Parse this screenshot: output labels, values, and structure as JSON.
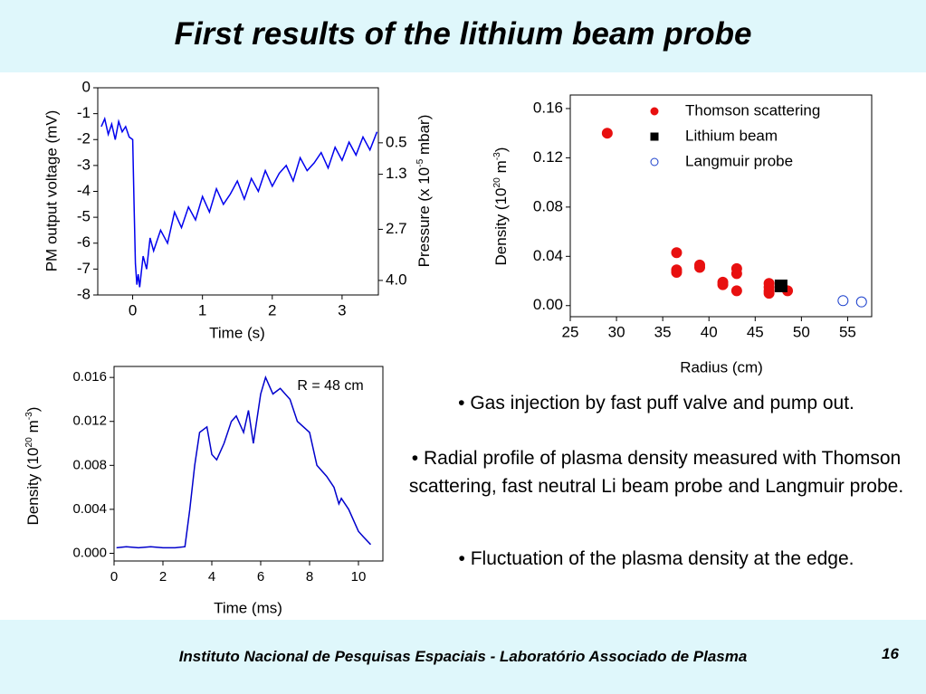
{
  "title": "First results of the lithium beam probe",
  "chart_data": [
    {
      "type": "line",
      "xlabel": "Time (s)",
      "ylabel": "PM output voltage (mV)",
      "y2label": {
        "parts": [
          "Pressure (x 10",
          "-5",
          " mbar)"
        ]
      },
      "x": [
        -0.45,
        -0.4,
        -0.35,
        -0.3,
        -0.25,
        -0.2,
        -0.15,
        -0.1,
        -0.05,
        0,
        0.02,
        0.04,
        0.06,
        0.08,
        0.1,
        0.15,
        0.2,
        0.25,
        0.3,
        0.4,
        0.5,
        0.6,
        0.7,
        0.8,
        0.9,
        1.0,
        1.1,
        1.2,
        1.3,
        1.4,
        1.5,
        1.6,
        1.7,
        1.8,
        1.9,
        2.0,
        2.1,
        2.2,
        2.3,
        2.4,
        2.5,
        2.6,
        2.7,
        2.8,
        2.9,
        3.0,
        3.1,
        3.2,
        3.3,
        3.4,
        3.5
      ],
      "series": [
        {
          "color": "#0000ee",
          "values": [
            -1.5,
            -1.2,
            -1.8,
            -1.4,
            -2.0,
            -1.3,
            -1.7,
            -1.5,
            -1.9,
            -2.0,
            -4.5,
            -6.8,
            -7.6,
            -7.2,
            -7.7,
            -6.5,
            -7.0,
            -5.8,
            -6.3,
            -5.5,
            -6.0,
            -4.8,
            -5.4,
            -4.6,
            -5.1,
            -4.2,
            -4.8,
            -3.9,
            -4.5,
            -4.1,
            -3.6,
            -4.3,
            -3.5,
            -4.0,
            -3.2,
            -3.8,
            -3.3,
            -3.0,
            -3.6,
            -2.7,
            -3.2,
            -2.9,
            -2.5,
            -3.1,
            -2.3,
            -2.8,
            -2.1,
            -2.6,
            -1.9,
            -2.4,
            -1.7
          ]
        }
      ],
      "xlim": [
        -0.5,
        3.52
      ],
      "xticks": [
        0,
        1,
        2,
        3
      ],
      "ylim": [
        -8,
        0
      ],
      "yticks": [
        0,
        -1,
        -2,
        -3,
        -4,
        -5,
        -6,
        -7,
        -8
      ],
      "y2lim": [
        4.37,
        -0.9
      ],
      "y2ticks": [
        0.5,
        1.3,
        2.7,
        {
          "value": 4,
          "label": "4.0"
        }
      ]
    },
    {
      "type": "scatter",
      "xlabel": "Radius (cm)",
      "ylabel": {
        "parts": [
          "Density (10",
          "20",
          " m",
          "-3",
          ")"
        ]
      },
      "legend": "upper right",
      "series": [
        {
          "name": "Thomson scattering",
          "color": "#e81010",
          "marker": "filled-circle",
          "x": [
            29,
            36.5,
            36.5,
            36.5,
            39,
            39,
            41.5,
            41.5,
            43,
            43,
            43,
            46.5,
            46.5,
            46.5,
            46.5,
            48.5
          ],
          "values": [
            0.14,
            0.043,
            0.029,
            0.027,
            0.033,
            0.031,
            0.019,
            0.017,
            0.03,
            0.026,
            0.012,
            0.018,
            0.015,
            0.012,
            0.01,
            0.012
          ]
        },
        {
          "name": "Lithium beam",
          "color": "#000000",
          "marker": "square",
          "x": [
            47.8
          ],
          "values": [
            0.016
          ]
        },
        {
          "name": "Langmuir probe",
          "color": "#1a3fcc",
          "marker": "open-circle",
          "x": [
            54.5,
            56.5
          ],
          "values": [
            0.004,
            0.003
          ]
        }
      ],
      "xlim": [
        25,
        57.6
      ],
      "xticks": [
        25,
        30,
        35,
        40,
        45,
        50,
        55
      ],
      "ylim": [
        -0.009,
        0.171
      ],
      "yticks": [
        {
          "value": 0,
          "label": "0.00"
        },
        0.04,
        0.08,
        0.12,
        0.16
      ]
    },
    {
      "type": "line",
      "xlabel": "Time (ms)",
      "ylabel": {
        "parts": [
          "Density (10",
          "20",
          " m",
          "-3",
          ")"
        ]
      },
      "annotation": "R = 48 cm",
      "x": [
        0.1,
        0.5,
        1.0,
        1.5,
        2.0,
        2.5,
        2.9,
        3.1,
        3.3,
        3.5,
        3.8,
        4.0,
        4.2,
        4.5,
        4.8,
        5.0,
        5.3,
        5.5,
        5.7,
        6.0,
        6.2,
        6.5,
        6.8,
        7.2,
        7.5,
        8.0,
        8.3,
        8.7,
        9.0,
        9.2,
        9.3,
        9.6,
        10.0,
        10.2,
        10.5
      ],
      "series": [
        {
          "color": "#0000cc",
          "values": [
            0.0005,
            0.0006,
            0.0005,
            0.0006,
            0.0005,
            0.0005,
            0.0006,
            0.004,
            0.008,
            0.011,
            0.0115,
            0.009,
            0.0085,
            0.01,
            0.012,
            0.0125,
            0.011,
            0.013,
            0.01,
            0.0145,
            0.016,
            0.0145,
            0.015,
            0.014,
            0.012,
            0.011,
            0.008,
            0.007,
            0.006,
            0.0045,
            0.005,
            0.004,
            0.002,
            0.0015,
            0.0008
          ]
        }
      ],
      "xlim": [
        0,
        11
      ],
      "xticks": [
        0,
        2,
        4,
        6,
        8,
        10
      ],
      "ylim": [
        -0.0007,
        0.017
      ],
      "yticks": [
        {
          "value": 0,
          "label": "0.000"
        },
        0.004,
        0.008,
        0.012,
        0.016
      ]
    }
  ],
  "bullets": [
    "• Gas injection by fast puff valve and pump out.",
    "• Radial profile of plasma density measured with Thomson scattering, fast neutral Li beam probe and Langmuir probe.",
    "• Fluctuation of the plasma density at the edge."
  ],
  "footer": "Instituto Nacional de Pesquisas Espaciais - Laboratório Associado de Plasma",
  "page_number": "16"
}
